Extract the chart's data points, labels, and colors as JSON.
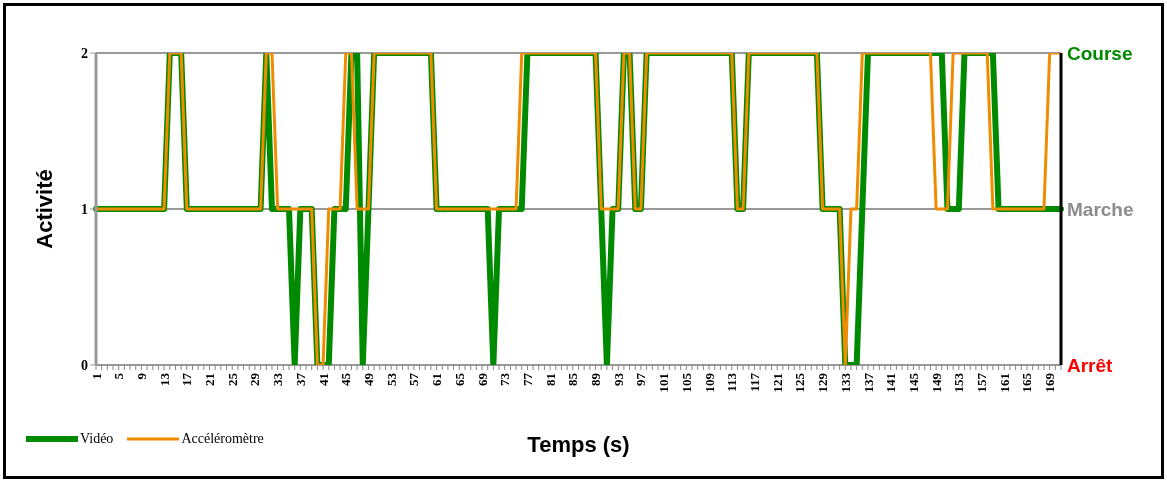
{
  "chart_data": {
    "type": "line",
    "xlabel": "Temps (s)",
    "ylabel": "Activité",
    "categories": [
      "1",
      null,
      null,
      null,
      "5",
      null,
      null,
      null,
      "9",
      null,
      null,
      null,
      "13",
      null,
      null,
      null,
      "17",
      null,
      null,
      null,
      "21",
      null,
      null,
      null,
      "25",
      null,
      null,
      null,
      "29",
      null,
      null,
      null,
      "33",
      null,
      null,
      null,
      "37",
      null,
      null,
      null,
      "41",
      null,
      null,
      null,
      "45",
      null,
      null,
      null,
      "49",
      null,
      null,
      null,
      "53",
      null,
      null,
      null,
      "57",
      null,
      null,
      null,
      "61",
      null,
      null,
      null,
      "65",
      null,
      null,
      null,
      "69",
      null,
      null,
      null,
      "73",
      null,
      null,
      null,
      "77",
      null,
      null,
      null,
      "81",
      null,
      null,
      null,
      "85",
      null,
      null,
      null,
      "89",
      null,
      null,
      null,
      "93",
      null,
      null,
      null,
      "97",
      null,
      null,
      null,
      "101",
      null,
      null,
      null,
      "105",
      null,
      null,
      null,
      "109",
      null,
      null,
      null,
      "113",
      null,
      null,
      null,
      "117",
      null,
      null,
      null,
      "121",
      null,
      null,
      null,
      "125",
      null,
      null,
      null,
      "129",
      null,
      null,
      null,
      "133",
      null,
      null,
      null,
      "137",
      null,
      null,
      null,
      "141",
      null,
      null,
      null,
      "145",
      null,
      null,
      null,
      "149",
      null,
      null,
      null,
      "153",
      null,
      null,
      null,
      "157",
      null,
      null,
      null,
      "161",
      null,
      null,
      null,
      "165",
      null,
      null,
      null,
      "169",
      null,
      null
    ],
    "series": [
      {
        "name": "Vidéo",
        "color": "#008a00",
        "values": [
          1,
          1,
          1,
          1,
          1,
          1,
          1,
          1,
          1,
          1,
          1,
          1,
          1,
          2,
          2,
          2,
          1,
          1,
          1,
          1,
          1,
          1,
          1,
          1,
          1,
          1,
          1,
          1,
          1,
          1,
          2,
          1,
          1,
          1,
          1,
          0,
          1,
          1,
          1,
          0,
          0,
          0,
          1,
          1,
          1,
          2,
          2,
          0,
          1,
          2,
          2,
          2,
          2,
          2,
          2,
          2,
          2,
          2,
          2,
          2,
          1,
          1,
          1,
          1,
          1,
          1,
          1,
          1,
          1,
          1,
          0,
          1,
          1,
          1,
          1,
          1,
          2,
          2,
          2,
          2,
          2,
          2,
          2,
          2,
          2,
          2,
          2,
          2,
          2,
          1,
          0,
          1,
          1,
          2,
          2,
          1,
          1,
          2,
          2,
          2,
          2,
          2,
          2,
          2,
          2,
          2,
          2,
          2,
          2,
          2,
          2,
          2,
          2,
          1,
          1,
          2,
          2,
          2,
          2,
          2,
          2,
          2,
          2,
          2,
          2,
          2,
          2,
          2,
          1,
          1,
          1,
          1,
          0,
          0,
          0,
          1,
          2,
          2,
          2,
          2,
          2,
          2,
          2,
          2,
          2,
          2,
          2,
          2,
          2,
          2,
          1,
          1,
          1,
          2,
          2,
          2,
          2,
          2,
          2,
          1,
          1,
          1,
          1,
          1,
          1,
          1,
          1,
          1,
          1,
          1,
          1
        ]
      },
      {
        "name": "Accéléromètre",
        "color": "#f08c00",
        "values": [
          1,
          1,
          1,
          1,
          1,
          1,
          1,
          1,
          1,
          1,
          1,
          1,
          1,
          2,
          2,
          2,
          1,
          1,
          1,
          1,
          1,
          1,
          1,
          1,
          1,
          1,
          1,
          1,
          1,
          1,
          2,
          2,
          1,
          1,
          1,
          1,
          1,
          1,
          1,
          0,
          0,
          1,
          1,
          1,
          2,
          2,
          1,
          1,
          1,
          2,
          2,
          2,
          2,
          2,
          2,
          2,
          2,
          2,
          2,
          2,
          1,
          1,
          1,
          1,
          1,
          1,
          1,
          1,
          1,
          1,
          1,
          1,
          1,
          1,
          1,
          2,
          2,
          2,
          2,
          2,
          2,
          2,
          2,
          2,
          2,
          2,
          2,
          2,
          2,
          1,
          1,
          1,
          1,
          2,
          2,
          1,
          1,
          2,
          2,
          2,
          2,
          2,
          2,
          2,
          2,
          2,
          2,
          2,
          2,
          2,
          2,
          2,
          2,
          1,
          1,
          2,
          2,
          2,
          2,
          2,
          2,
          2,
          2,
          2,
          2,
          2,
          2,
          2,
          1,
          1,
          1,
          1,
          0,
          1,
          1,
          2,
          2,
          2,
          2,
          2,
          2,
          2,
          2,
          2,
          2,
          2,
          2,
          2,
          1,
          1,
          1,
          2,
          2,
          2,
          2,
          2,
          2,
          2,
          1,
          1,
          1,
          1,
          1,
          1,
          1,
          1,
          1,
          1,
          2,
          2,
          2
        ]
      }
    ],
    "ylim": [
      0,
      2
    ],
    "yticks": [
      0,
      1,
      2
    ],
    "legend": "bottom left",
    "marker": "none",
    "line_style": "solid",
    "grid": "y",
    "annotations": [
      "Course",
      "Marche",
      "Arrêt"
    ]
  }
}
